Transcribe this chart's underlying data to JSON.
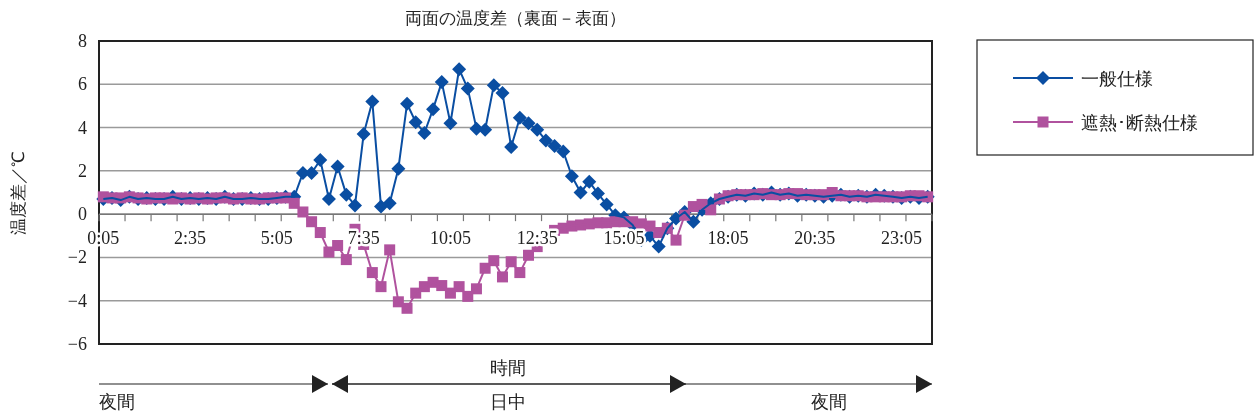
{
  "chart_data": {
    "type": "line",
    "title": "両面の温度差（裏面－表面）",
    "xlabel": "時間",
    "ylabel": "温度差／℃",
    "categories": [
      "0:05",
      null,
      null,
      null,
      null,
      null,
      null,
      null,
      null,
      null,
      "2:35",
      null,
      null,
      null,
      null,
      null,
      null,
      null,
      null,
      null,
      "5:05",
      null,
      null,
      null,
      null,
      null,
      null,
      null,
      null,
      null,
      "7:35",
      null,
      null,
      null,
      null,
      null,
      null,
      null,
      null,
      null,
      "10:05",
      null,
      null,
      null,
      null,
      null,
      null,
      null,
      null,
      null,
      "12:35",
      null,
      null,
      null,
      null,
      null,
      null,
      null,
      null,
      null,
      "15:05",
      null,
      null,
      null,
      null,
      null,
      null,
      null,
      null,
      null,
      null,
      null,
      "18:05",
      null,
      null,
      null,
      null,
      null,
      null,
      null,
      null,
      null,
      "20:35",
      null,
      null,
      null,
      null,
      null,
      null,
      null,
      null,
      null,
      "23:05",
      null,
      null,
      null
    ],
    "series": [
      {
        "name": "一般仕様",
        "color": "#0a4ea2",
        "marker": "diamond",
        "values": [
          0.7,
          0.75,
          0.65,
          0.8,
          0.7,
          0.75,
          0.7,
          0.7,
          0.8,
          0.7,
          0.75,
          0.7,
          0.75,
          0.7,
          0.8,
          0.7,
          0.7,
          0.75,
          0.7,
          0.7,
          0.75,
          0.8,
          0.8,
          1.9,
          1.9,
          2.5,
          0.7,
          2.2,
          0.9,
          0.4,
          3.7,
          5.2,
          0.35,
          0.5,
          2.1,
          5.1,
          4.25,
          3.75,
          4.85,
          6.1,
          4.2,
          6.7,
          5.8,
          3.95,
          3.9,
          5.95,
          5.6,
          3.1,
          4.45,
          4.2,
          3.9,
          3.4,
          3.15,
          2.9,
          1.75,
          1.0,
          1.5,
          0.95,
          0.45,
          -0.05,
          -0.15,
          -0.5,
          -1.2,
          -1.0,
          -1.5,
          -0.65,
          -0.2,
          0.1,
          -0.35,
          0.2,
          0.5,
          0.7,
          0.8,
          0.9,
          0.85,
          0.95,
          0.9,
          1.0,
          0.9,
          0.95,
          0.85,
          0.9,
          0.85,
          0.8,
          0.85,
          0.9,
          0.8,
          0.85,
          0.8,
          0.9,
          0.85,
          0.8,
          0.75,
          0.8,
          0.75,
          0.8
        ]
      },
      {
        "name": "遮熱･断熱仕様",
        "color": "#b0529e",
        "marker": "square",
        "values": [
          0.8,
          0.75,
          0.75,
          0.8,
          0.75,
          0.7,
          0.75,
          0.75,
          0.7,
          0.75,
          0.7,
          0.75,
          0.7,
          0.75,
          0.75,
          0.7,
          0.75,
          0.7,
          0.7,
          0.75,
          0.75,
          0.75,
          0.5,
          0.1,
          -0.35,
          -0.85,
          -1.75,
          -1.45,
          -2.1,
          -0.7,
          -1.4,
          -2.7,
          -3.35,
          -1.65,
          -4.05,
          -4.35,
          -3.65,
          -3.35,
          -3.15,
          -3.3,
          -3.65,
          -3.35,
          -3.8,
          -3.45,
          -2.5,
          -2.15,
          -2.9,
          -2.2,
          -2.7,
          -1.9,
          -1.5,
          -1.05,
          -0.75,
          -0.65,
          -0.55,
          -0.5,
          -0.45,
          -0.4,
          -0.4,
          -0.35,
          -0.35,
          -0.35,
          -0.45,
          -0.55,
          -0.85,
          -0.65,
          -1.2,
          -0.05,
          0.35,
          0.45,
          0.2,
          0.7,
          0.85,
          0.9,
          0.9,
          0.9,
          0.95,
          0.9,
          0.9,
          0.95,
          0.95,
          0.9,
          0.9,
          0.9,
          1.0,
          0.85,
          0.85,
          0.85,
          0.8,
          0.8,
          0.8,
          0.8,
          0.8,
          0.85,
          0.85,
          0.8
        ]
      }
    ],
    "ylim": [
      -6,
      8
    ],
    "yticks": [
      {
        "value": -6,
        "label": "−6"
      },
      {
        "value": -4,
        "label": "−4"
      },
      {
        "value": -2,
        "label": "−2"
      },
      0,
      2,
      4,
      6,
      8
    ],
    "grid": "y",
    "legend": "right",
    "line_style": "solid",
    "annotations": [
      "夜間",
      "日中",
      "夜間"
    ]
  }
}
